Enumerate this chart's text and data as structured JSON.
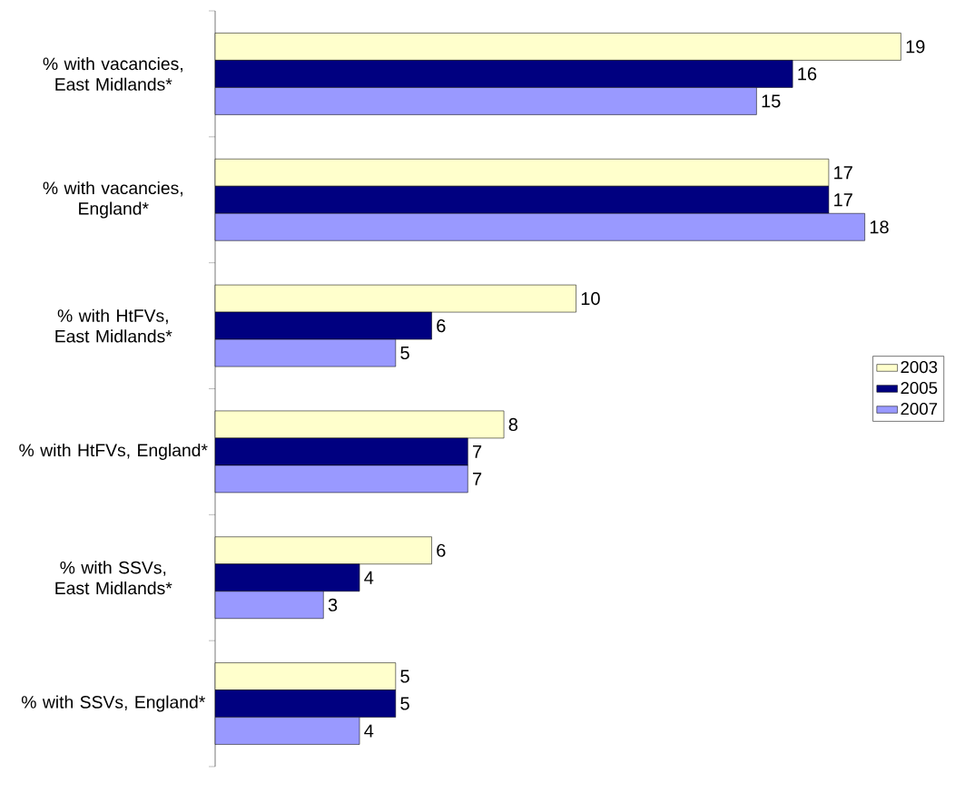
{
  "chart_data": {
    "type": "bar",
    "orientation": "horizontal",
    "data_labels": true,
    "legend": "right",
    "categories": [
      "% with vacancies, East Midlands*",
      "% with vacancies, England*",
      "% with HtFVs, East Midlands*",
      "% with HtFVs, England*",
      "% with SSVs, East Midlands*",
      "% with SSVs, England*"
    ],
    "series": [
      {
        "name": "2003",
        "color": "#ffffcc",
        "values": [
          19,
          17,
          10,
          8,
          6,
          5
        ]
      },
      {
        "name": "2005",
        "color": "#000080",
        "values": [
          16,
          17,
          6,
          7,
          4,
          5
        ]
      },
      {
        "name": "2007",
        "color": "#9999ff",
        "values": [
          15,
          18,
          5,
          7,
          3,
          4
        ]
      }
    ]
  }
}
